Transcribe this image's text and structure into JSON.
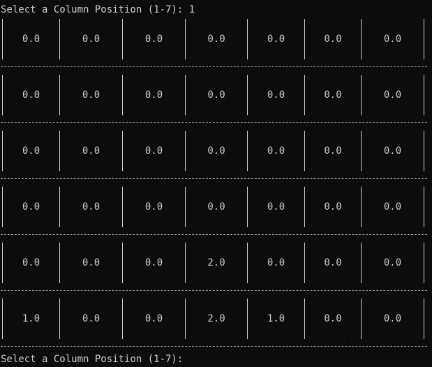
{
  "terminal": {
    "prompt_top": "Select a Column Position (1-7): 1",
    "prompt_bottom": "Select a Column Position (1-7): "
  },
  "board": {
    "rows": [
      [
        "0.0",
        "0.0",
        "0.0",
        "0.0",
        "0.0",
        "0.0",
        "0.0"
      ],
      [
        "0.0",
        "0.0",
        "0.0",
        "0.0",
        "0.0",
        "0.0",
        "0.0"
      ],
      [
        "0.0",
        "0.0",
        "0.0",
        "0.0",
        "0.0",
        "0.0",
        "0.0"
      ],
      [
        "0.0",
        "0.0",
        "0.0",
        "0.0",
        "0.0",
        "0.0",
        "0.0"
      ],
      [
        "0.0",
        "0.0",
        "0.0",
        "2.0",
        "0.0",
        "0.0",
        "0.0"
      ],
      [
        "1.0",
        "0.0",
        "0.0",
        "2.0",
        "1.0",
        "0.0",
        "0.0"
      ]
    ]
  },
  "colors": {
    "background": "#0c0c0c",
    "foreground": "#cccccc"
  }
}
